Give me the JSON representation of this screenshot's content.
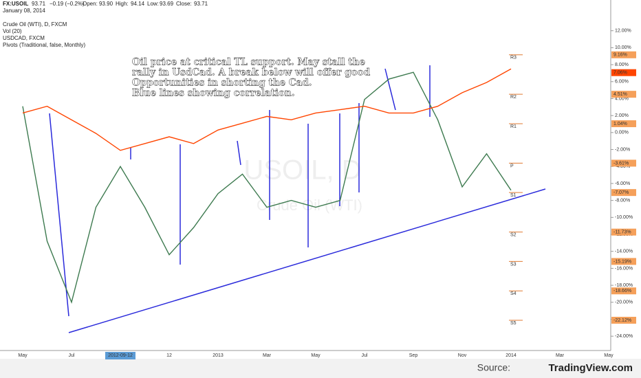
{
  "chart_data": {
    "type": "line",
    "header": {
      "symbol": "FX:USOIL",
      "last": "93.71",
      "change": "−0.19 (−0.2%)",
      "open_label": "Open:",
      "open": "93.90",
      "high_label": "High:",
      "high": "94.14",
      "low_label": "Low:",
      "low": "93.69",
      "close_label": "Close:",
      "close": "93.71",
      "date": "January 08, 2014"
    },
    "legend_texts": [
      "Crude Oil (WTI), D, FXCM",
      "Vol (20)",
      "USDCAD, FXCM",
      "Pivots (Traditional, false, Monthly)"
    ],
    "watermark": [
      "USOIL, D",
      "Crude Oil (WTI)"
    ],
    "annotation": [
      "Oil price at critical TL support. May stall the",
      "rally in UsdCad. A break below will offer good",
      "Opportunities in shorting the Cad.",
      "Blue lines showing correlation."
    ],
    "source": [
      "Source:",
      "TradingView.com"
    ],
    "categories": [
      "May",
      null,
      "Jul",
      null,
      "2012-09-12",
      null,
      "12",
      null,
      "2013",
      null,
      "Mar",
      null,
      "May",
      null,
      "Jul",
      null,
      "Sep",
      null,
      "Nov",
      null,
      "2014",
      null,
      "Mar",
      null,
      "May"
    ],
    "series": [
      {
        "name": "Crude Oil (WTI)",
        "color": "#3d7a4f",
        "values": [
          3.1,
          -12.8,
          -20,
          -8.8,
          -4,
          -8.8,
          -14.4,
          -11.2,
          -7.2,
          -4.9,
          -8.8,
          -8,
          -8.8,
          -8,
          3.9,
          6.3,
          7.1,
          1.5,
          -6.4,
          -2.5,
          -6.8,
          null,
          null,
          null,
          null
        ]
      },
      {
        "name": "USDCAD",
        "color": "#ff4500",
        "values": [
          2.3,
          3.1,
          1.5,
          -0.1,
          -2.1,
          -1.3,
          -0.5,
          -1.3,
          0.3,
          1.1,
          1.9,
          1.5,
          2.3,
          2.7,
          3.1,
          2.3,
          2.3,
          3.1,
          4.7,
          5.9,
          7.5,
          null,
          null,
          null,
          null
        ]
      }
    ],
    "last_tag": {
      "value": 7.06,
      "label": "7.06%"
    },
    "pivots": [
      {
        "name": "R3",
        "value": 9.16,
        "label": "9.16%"
      },
      {
        "name": "R2",
        "value": 4.51,
        "label": "4.51%"
      },
      {
        "name": "R1",
        "value": 1.04,
        "label": "1.04%"
      },
      {
        "name": "P",
        "value": -3.61,
        "label": "-3.61%"
      },
      {
        "name": "S1",
        "value": -7.07,
        "label": "-7.07%"
      },
      {
        "name": "S2",
        "value": -11.73,
        "label": "-11.73%"
      },
      {
        "name": "S3",
        "value": -15.19,
        "label": "-15.19%"
      },
      {
        "name": "S4",
        "value": -18.66,
        "label": "-18.66%"
      },
      {
        "name": "S5",
        "value": -22.12,
        "label": "-22.12%"
      }
    ],
    "ylim": [
      -25.2,
      14
    ],
    "yticks": [
      {
        "value": 12,
        "label": "12.00%"
      },
      {
        "value": 10,
        "label": "10.00%"
      },
      {
        "value": 8,
        "label": "8.00%"
      },
      {
        "value": 6,
        "label": "6.00%"
      },
      {
        "value": 4,
        "label": "4.00%"
      },
      {
        "value": 2,
        "label": "2.00%"
      },
      {
        "value": 0,
        "label": "0.00%"
      },
      {
        "value": -2,
        "label": "-2.00%"
      },
      {
        "value": -4,
        "label": "-4.00%"
      },
      {
        "value": -6,
        "label": "-6.00%"
      },
      {
        "value": -8,
        "label": "-8.00%"
      },
      {
        "value": -10,
        "label": "-10.00%"
      },
      {
        "value": -12,
        "label": "-12.00%"
      },
      {
        "value": -14,
        "label": "-14.00%"
      },
      {
        "value": -16,
        "label": "-16.00%"
      },
      {
        "value": -18,
        "label": "-18.00%"
      },
      {
        "value": -20,
        "label": "-20.00%"
      },
      {
        "value": -22,
        "label": "-22.00%"
      },
      {
        "value": -24,
        "label": "-24.00%"
      }
    ],
    "grid": false
  }
}
